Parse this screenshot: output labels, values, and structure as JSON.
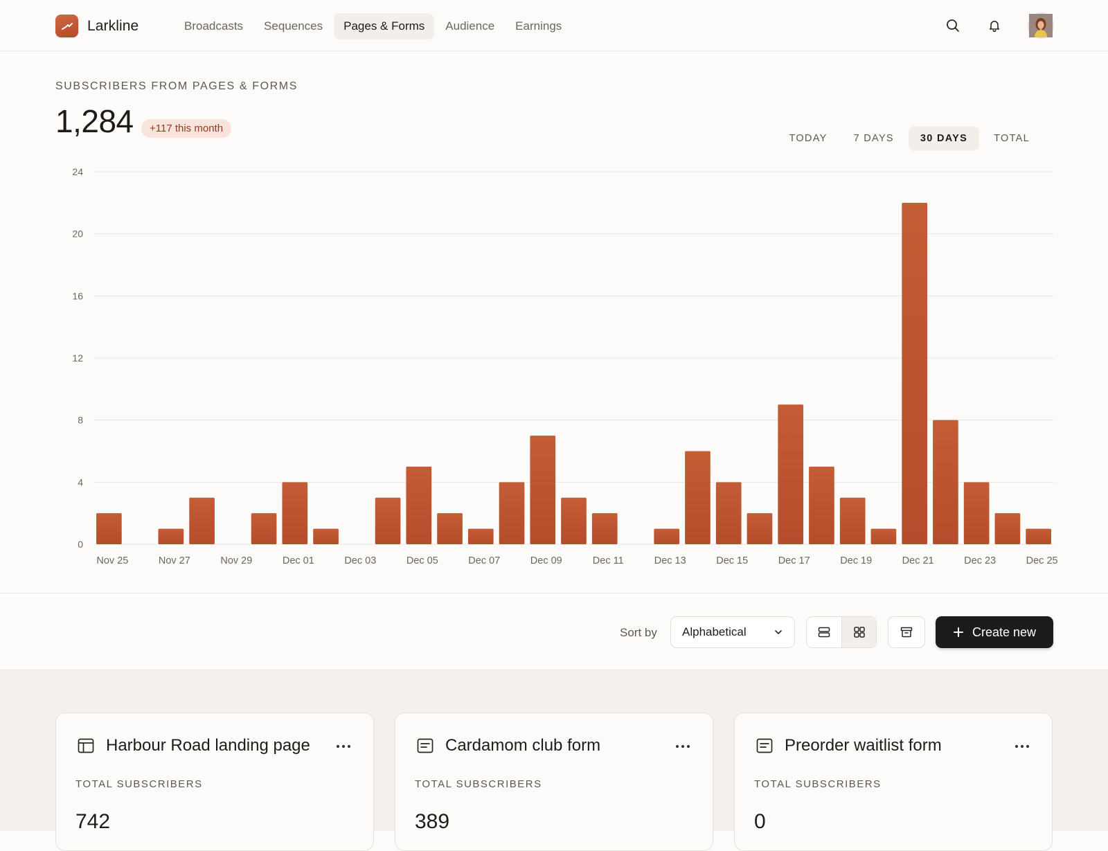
{
  "app": {
    "name": "Larkline"
  },
  "nav": {
    "items": [
      {
        "label": "Broadcasts"
      },
      {
        "label": "Sequences"
      },
      {
        "label": "Pages & Forms",
        "active": true
      },
      {
        "label": "Audience"
      },
      {
        "label": "Earnings"
      }
    ]
  },
  "header_icons": [
    "search-icon",
    "bell-icon",
    "avatar"
  ],
  "stats": {
    "title": "SUBSCRIBERS FROM PAGES & FORMS",
    "value": "1,284",
    "badge": "+117 this month"
  },
  "range_tabs": [
    {
      "label": "TODAY"
    },
    {
      "label": "7 DAYS"
    },
    {
      "label": "30 DAYS",
      "active": true
    },
    {
      "label": "TOTAL"
    }
  ],
  "chart_data": {
    "type": "bar",
    "title": "",
    "xlabel": "",
    "ylabel": "",
    "ylim": [
      0,
      24
    ],
    "yticks": [
      0,
      4,
      8,
      12,
      16,
      20,
      24
    ],
    "grid": true,
    "color": "#c45c36",
    "categories": [
      "Nov 25",
      "Nov 26",
      "Nov 27",
      "Nov 28",
      "Nov 29",
      "Nov 30",
      "Dec 01",
      "Dec 02",
      "Dec 03",
      "Dec 04",
      "Dec 05",
      "Dec 06",
      "Dec 07",
      "Dec 08",
      "Dec 09",
      "Dec 10",
      "Dec 11",
      "Dec 12",
      "Dec 13",
      "Dec 14",
      "Dec 15",
      "Dec 16",
      "Dec 17",
      "Dec 18",
      "Dec 19",
      "Dec 20",
      "Dec 21",
      "Dec 22",
      "Dec 23",
      "Dec 24",
      "Dec 25"
    ],
    "x_tick_labels": [
      "Nov 25",
      "Nov 27",
      "Nov 29",
      "Dec 01",
      "Dec 03",
      "Dec 05",
      "Dec 07",
      "Dec 09",
      "Dec 11",
      "Dec 13",
      "Dec 15",
      "Dec 17",
      "Dec 19",
      "Dec 21",
      "Dec 23",
      "Dec 25"
    ],
    "values": [
      2,
      0,
      1,
      3,
      0,
      2,
      4,
      1,
      0,
      3,
      5,
      2,
      1,
      4,
      7,
      3,
      2,
      0,
      1,
      6,
      4,
      2,
      9,
      5,
      3,
      1,
      22,
      8,
      4,
      2,
      1
    ]
  },
  "toolbar": {
    "sort_label": "Sort by",
    "sort_value": "Alphabetical",
    "create_label": "Create new"
  },
  "cards": [
    {
      "title": "Harbour Road landing page",
      "icon": "landing-page-icon",
      "label": "TOTAL SUBSCRIBERS",
      "value": "742"
    },
    {
      "title": "Cardamom club form",
      "icon": "form-icon",
      "label": "TOTAL SUBSCRIBERS",
      "value": "389"
    },
    {
      "title": "Preorder waitlist form",
      "icon": "form-icon",
      "label": "TOTAL SUBSCRIBERS",
      "value": "0"
    }
  ]
}
